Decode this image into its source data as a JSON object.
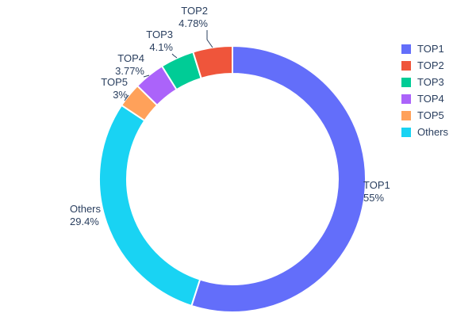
{
  "chart_data": {
    "type": "pie",
    "variant": "donut",
    "hole": 0.79,
    "title": "",
    "legend_position": "right",
    "background": "#ffffff",
    "text_color": "#2a3f5f",
    "categories": [
      "TOP1",
      "TOP2",
      "TOP3",
      "TOP4",
      "TOP5",
      "Others"
    ],
    "values": [
      55,
      4.78,
      4.1,
      3.77,
      3,
      29.4
    ],
    "series": [
      {
        "name": "TOP1",
        "value": 55,
        "pct_label": "55%",
        "color": "#636EFA"
      },
      {
        "name": "TOP2",
        "value": 4.78,
        "pct_label": "4.78%",
        "color": "#EF553B"
      },
      {
        "name": "TOP3",
        "value": 4.1,
        "pct_label": "4.1%",
        "color": "#00CC96"
      },
      {
        "name": "TOP4",
        "value": 3.77,
        "pct_label": "3.77%",
        "color": "#AB63FA"
      },
      {
        "name": "TOP5",
        "value": 3,
        "pct_label": "3%",
        "color": "#FFA15A"
      },
      {
        "name": "Others",
        "value": 29.4,
        "pct_label": "29.4%",
        "color": "#19D3F3"
      }
    ],
    "legend": [
      "TOP1",
      "TOP2",
      "TOP3",
      "TOP4",
      "TOP5",
      "Others"
    ]
  }
}
